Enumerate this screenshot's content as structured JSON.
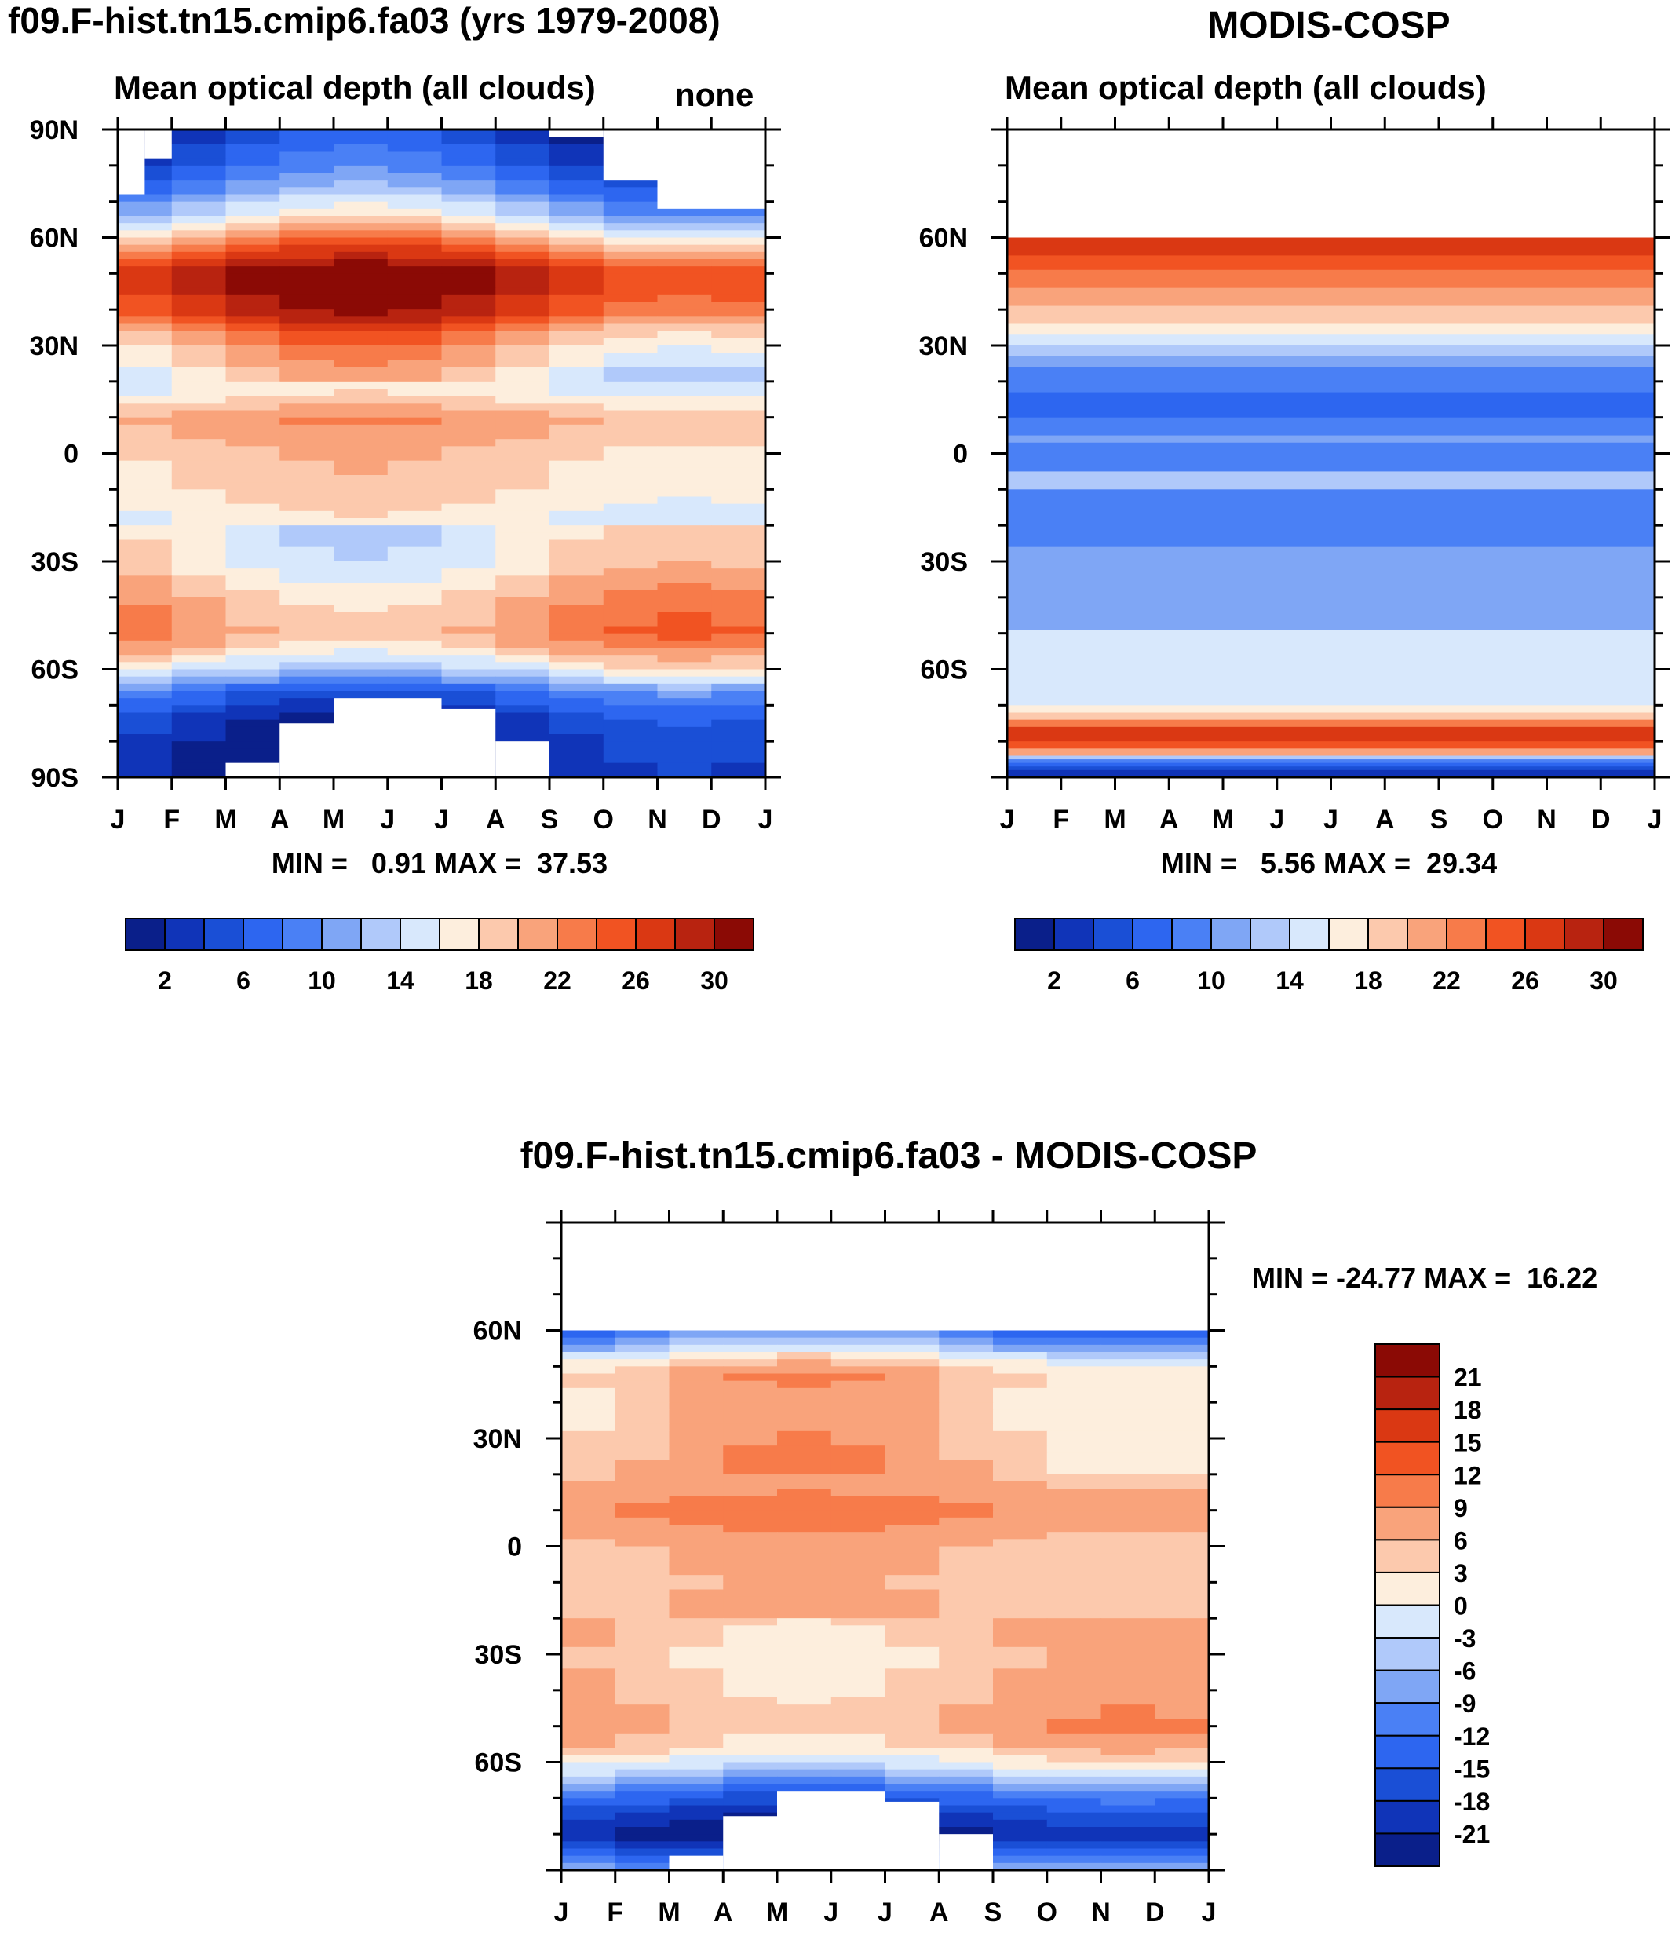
{
  "colors": {
    "seq": [
      "#0a1f8a",
      "#1034b8",
      "#1a4fd6",
      "#2d66f0",
      "#4a80f5",
      "#7fa6f5",
      "#b0c9fa",
      "#d8e8fc",
      "#fdeedd",
      "#fcc9ad",
      "#f9a37b",
      "#f77b4a",
      "#f15322",
      "#da3813",
      "#b82310",
      "#8b0a05"
    ],
    "diff": [
      "#0a1f8a",
      "#1034b8",
      "#1a4fd6",
      "#2d66f0",
      "#4a80f5",
      "#7fa6f5",
      "#b0c9fa",
      "#d8e8fc",
      "#fdeedd",
      "#fcc9ad",
      "#f9a37b",
      "#f77b4a",
      "#f15322",
      "#da3813",
      "#b82310",
      "#8b0a05"
    ],
    "missing": "#ffffff"
  },
  "chart_data": [
    {
      "id": "model",
      "type": "heatmap",
      "title": "f09.F-hist.tn15.cmip6.fa03 (yrs 1979-2008)",
      "subtitle": "Mean optical depth (all clouds)",
      "right_label": "none",
      "x_tick_labels": [
        "J",
        "F",
        "M",
        "A",
        "M",
        "J",
        "J",
        "A",
        "S",
        "O",
        "N",
        "D",
        "J"
      ],
      "y_tick_labels": [
        "90N",
        "60N",
        "30N",
        "0",
        "30S",
        "60S",
        "90S"
      ],
      "y_ticks": [
        90,
        60,
        30,
        0,
        -30,
        -60,
        -90
      ],
      "ylim": [
        -90,
        90
      ],
      "minmax_text": "MIN =   0.91 MAX =  37.53",
      "min": 0.91,
      "max": 37.53,
      "colorbar_levels": [
        0,
        2,
        4,
        6,
        8,
        10,
        12,
        14,
        16,
        18,
        20,
        22,
        24,
        26,
        28,
        30,
        32
      ],
      "colorbar_labels": [
        "2",
        "6",
        "10",
        "14",
        "18",
        "22",
        "26",
        "30"
      ],
      "colorbar_label_values": [
        2,
        6,
        10,
        14,
        18,
        22,
        26,
        30
      ],
      "lat_profile": [
        {
          "lat": 90,
          "v": 3
        },
        {
          "lat": 80,
          "v": 6
        },
        {
          "lat": 72,
          "v": 10
        },
        {
          "lat": 66,
          "v": 14
        },
        {
          "lat": 60,
          "v": 20
        },
        {
          "lat": 50,
          "v": 29
        },
        {
          "lat": 40,
          "v": 27
        },
        {
          "lat": 32,
          "v": 21
        },
        {
          "lat": 25,
          "v": 18
        },
        {
          "lat": 18,
          "v": 16
        },
        {
          "lat": 10,
          "v": 21
        },
        {
          "lat": 5,
          "v": 20
        },
        {
          "lat": 0,
          "v": 19
        },
        {
          "lat": -10,
          "v": 18
        },
        {
          "lat": -20,
          "v": 16
        },
        {
          "lat": -30,
          "v": 17
        },
        {
          "lat": -40,
          "v": 20
        },
        {
          "lat": -50,
          "v": 22
        },
        {
          "lat": -56,
          "v": 18
        },
        {
          "lat": -62,
          "v": 13
        },
        {
          "lat": -66,
          "v": 8
        },
        {
          "lat": -72,
          "v": 4
        },
        {
          "lat": -80,
          "v": 2
        },
        {
          "lat": -90,
          "v": 1
        }
      ],
      "missing_regions": [
        {
          "m0": 0,
          "m1": 0.5,
          "lat0": 72,
          "lat1": 90
        },
        {
          "m0": 0.5,
          "m1": 1,
          "lat0": 82,
          "lat1": 90
        },
        {
          "m0": 8,
          "m1": 9,
          "lat0": 88,
          "lat1": 90
        },
        {
          "m0": 9,
          "m1": 10,
          "lat0": 76,
          "lat1": 90
        },
        {
          "m0": 10,
          "m1": 12,
          "lat0": 68,
          "lat1": 90
        },
        {
          "m0": 2,
          "m1": 3,
          "lat0": -90,
          "lat1": -86
        },
        {
          "m0": 3,
          "m1": 4,
          "lat0": -90,
          "lat1": -75
        },
        {
          "m0": 4,
          "m1": 6,
          "lat0": -90,
          "lat1": -68
        },
        {
          "m0": 6,
          "m1": 7,
          "lat0": -90,
          "lat1": -71
        },
        {
          "m0": 7,
          "m1": 8,
          "lat0": -90,
          "lat1": -80
        }
      ]
    },
    {
      "id": "obs",
      "type": "heatmap",
      "title": "MODIS-COSP",
      "subtitle": "Mean optical depth (all clouds)",
      "x_tick_labels": [
        "J",
        "F",
        "M",
        "A",
        "M",
        "J",
        "J",
        "A",
        "S",
        "O",
        "N",
        "D",
        "J"
      ],
      "y_tick_labels": [
        "60N",
        "30N",
        "0",
        "30S",
        "60S"
      ],
      "y_ticks": [
        60,
        30,
        0,
        -30,
        -60
      ],
      "ylim": [
        -90,
        90
      ],
      "minmax_text": "MIN =   5.56 MAX =  29.34",
      "min": 5.56,
      "max": 29.34,
      "colorbar_levels": [
        0,
        2,
        4,
        6,
        8,
        10,
        12,
        14,
        16,
        18,
        20,
        22,
        24,
        26,
        28,
        30,
        32
      ],
      "colorbar_labels": [
        "2",
        "6",
        "10",
        "14",
        "18",
        "22",
        "26",
        "30"
      ],
      "colorbar_label_values": [
        2,
        6,
        10,
        14,
        18,
        22,
        26,
        30
      ],
      "bands": [
        {
          "lat0": 60,
          "lat1": 90,
          "v": null
        },
        {
          "lat0": 58,
          "lat1": 60,
          "v": 27
        },
        {
          "lat0": 55,
          "lat1": 58,
          "v": 26
        },
        {
          "lat0": 51,
          "lat1": 55,
          "v": 25
        },
        {
          "lat0": 46,
          "lat1": 51,
          "v": 23
        },
        {
          "lat0": 41,
          "lat1": 46,
          "v": 21.5
        },
        {
          "lat0": 36,
          "lat1": 41,
          "v": 19.5
        },
        {
          "lat0": 33,
          "lat1": 36,
          "v": 17.5
        },
        {
          "lat0": 30,
          "lat1": 33,
          "v": 14.5
        },
        {
          "lat0": 27,
          "lat1": 30,
          "v": 13
        },
        {
          "lat0": 24,
          "lat1": 27,
          "v": 11
        },
        {
          "lat0": 17,
          "lat1": 24,
          "v": 9
        },
        {
          "lat0": 10,
          "lat1": 17,
          "v": 7
        },
        {
          "lat0": 5,
          "lat1": 10,
          "v": 9
        },
        {
          "lat0": 3,
          "lat1": 5,
          "v": 11
        },
        {
          "lat0": -2,
          "lat1": 3,
          "v": 9
        },
        {
          "lat0": -5,
          "lat1": -2,
          "v": 9
        },
        {
          "lat0": -10,
          "lat1": -5,
          "v": 13
        },
        {
          "lat0": -26,
          "lat1": -10,
          "v": 9
        },
        {
          "lat0": -49,
          "lat1": -26,
          "v": 11
        },
        {
          "lat0": -70,
          "lat1": -49,
          "v": 15
        },
        {
          "lat0": -72,
          "lat1": -70,
          "v": 17
        },
        {
          "lat0": -74,
          "lat1": -72,
          "v": 19
        },
        {
          "lat0": -76,
          "lat1": -74,
          "v": 23
        },
        {
          "lat0": -80,
          "lat1": -76,
          "v": 27
        },
        {
          "lat0": -82,
          "lat1": -80,
          "v": 25
        },
        {
          "lat0": -84,
          "lat1": -82,
          "v": 21
        },
        {
          "lat0": -85,
          "lat1": -84,
          "v": 13
        },
        {
          "lat0": -86,
          "lat1": -85,
          "v": 9
        },
        {
          "lat0": -87,
          "lat1": -86,
          "v": 7
        },
        {
          "lat0": -88,
          "lat1": -87,
          "v": 5
        },
        {
          "lat0": -90,
          "lat1": -88,
          "v": 3
        }
      ]
    },
    {
      "id": "diff",
      "type": "heatmap",
      "title": "f09.F-hist.tn15.cmip6.fa03 - MODIS-COSP",
      "x_tick_labels": [
        "J",
        "F",
        "M",
        "A",
        "M",
        "J",
        "J",
        "A",
        "S",
        "O",
        "N",
        "D",
        "J"
      ],
      "y_tick_labels": [
        "60N",
        "30N",
        "0",
        "30S",
        "60S"
      ],
      "y_ticks": [
        60,
        30,
        0,
        -30,
        -60
      ],
      "ylim": [
        -90,
        90
      ],
      "minmax_text": "MIN = -24.77 MAX =  16.22",
      "min": -24.77,
      "max": 16.22,
      "colorbar_levels": [
        -24,
        -21,
        -18,
        -15,
        -12,
        -9,
        -6,
        -3,
        0,
        3,
        6,
        9,
        12,
        15,
        18,
        21,
        24
      ],
      "colorbar_labels": [
        "21",
        "18",
        "15",
        "12",
        "9",
        "6",
        "3",
        "0",
        "-3",
        "-6",
        "-9",
        "-12",
        "-15",
        "-18",
        "-21"
      ],
      "colorbar_label_values": [
        21,
        18,
        15,
        12,
        9,
        6,
        3,
        0,
        -3,
        -6,
        -9,
        -12,
        -15,
        -18,
        -21
      ],
      "lat_profile": [
        {
          "lat": 60,
          "v": -12
        },
        {
          "lat": 56,
          "v": -6
        },
        {
          "lat": 52,
          "v": 1
        },
        {
          "lat": 48,
          "v": 6
        },
        {
          "lat": 40,
          "v": 4
        },
        {
          "lat": 32,
          "v": 5
        },
        {
          "lat": 24,
          "v": 6
        },
        {
          "lat": 16,
          "v": 7
        },
        {
          "lat": 10,
          "v": 10
        },
        {
          "lat": 5,
          "v": 8
        },
        {
          "lat": 0,
          "v": 6
        },
        {
          "lat": -10,
          "v": 5
        },
        {
          "lat": -20,
          "v": 6
        },
        {
          "lat": -30,
          "v": 4
        },
        {
          "lat": -40,
          "v": 5
        },
        {
          "lat": -50,
          "v": 7
        },
        {
          "lat": -56,
          "v": 4
        },
        {
          "lat": -60,
          "v": 0
        },
        {
          "lat": -64,
          "v": -6
        },
        {
          "lat": -68,
          "v": -12
        },
        {
          "lat": -74,
          "v": -18
        },
        {
          "lat": -80,
          "v": -23
        },
        {
          "lat": -85,
          "v": -16
        },
        {
          "lat": -90,
          "v": -9
        }
      ],
      "missing_regions": [
        {
          "m0": 0,
          "m1": 12,
          "lat0": 60,
          "lat1": 90
        },
        {
          "m0": 2,
          "m1": 3,
          "lat0": -90,
          "lat1": -86
        },
        {
          "m0": 3,
          "m1": 4,
          "lat0": -90,
          "lat1": -75
        },
        {
          "m0": 4,
          "m1": 6,
          "lat0": -90,
          "lat1": -68
        },
        {
          "m0": 6,
          "m1": 7,
          "lat0": -90,
          "lat1": -71
        },
        {
          "m0": 7,
          "m1": 8,
          "lat0": -90,
          "lat1": -80
        }
      ]
    }
  ]
}
